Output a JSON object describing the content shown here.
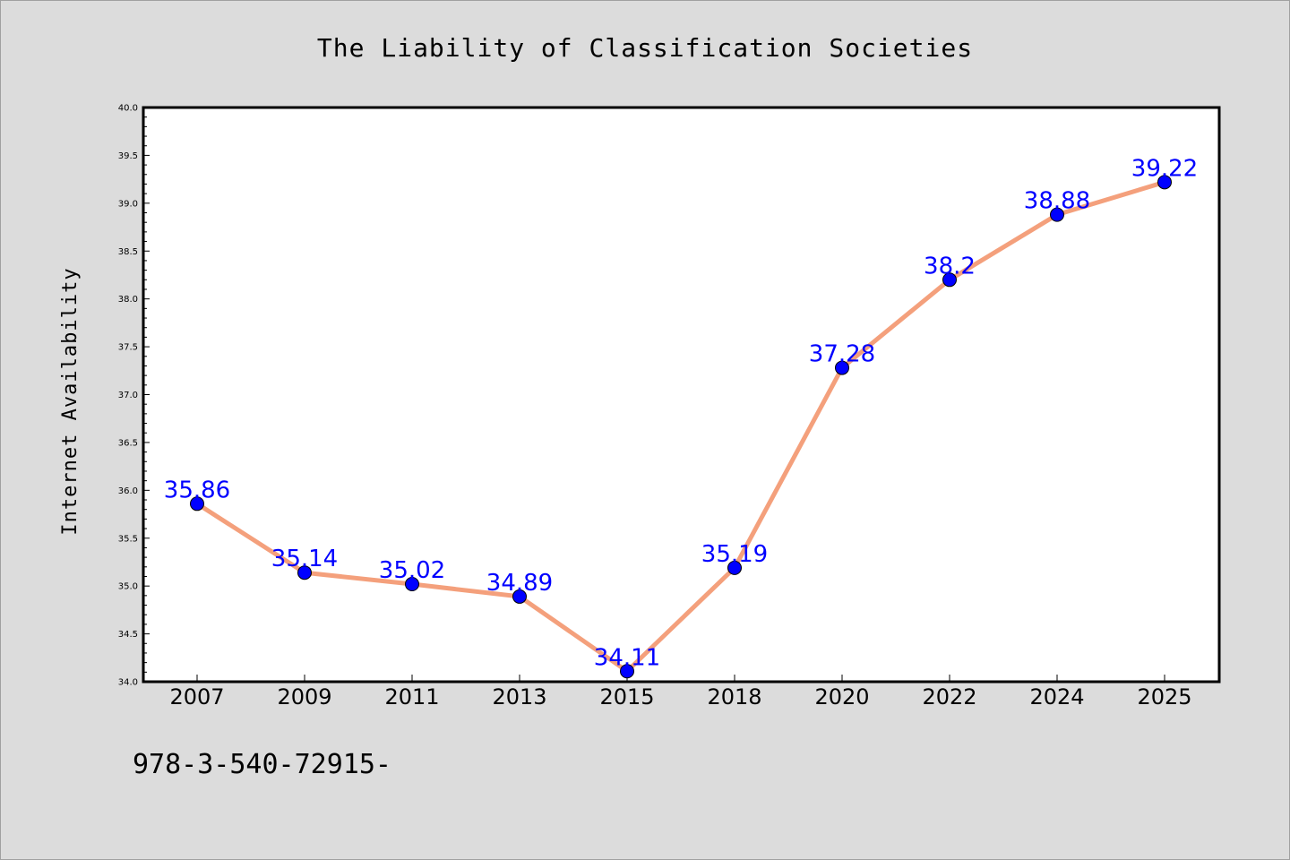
{
  "chart_data": {
    "type": "line",
    "title": "The Liability of Classification Societies",
    "ylabel": "Internet Availability",
    "xlabel": "",
    "categories": [
      "2007",
      "2009",
      "2011",
      "2013",
      "2015",
      "2018",
      "2020",
      "2022",
      "2024",
      "2025"
    ],
    "series": [
      {
        "values": [
          35.86,
          35.14,
          35.02,
          34.89,
          34.11,
          35.19,
          37.28,
          38.2,
          38.88,
          39.22
        ],
        "data_labels": [
          "35.86",
          "35.14",
          "35.02",
          "34.89",
          "34.11",
          "35.19",
          "37.28",
          "38.2",
          "38.88",
          "39.22"
        ]
      }
    ],
    "ylim": [
      34.0,
      40.0
    ],
    "yticks": [
      "34.0",
      "34.5",
      "35.0",
      "35.5",
      "36.0",
      "36.5",
      "37.0",
      "37.5",
      "38.0",
      "38.5",
      "39.0",
      "39.5",
      "40.0"
    ],
    "grid": false,
    "colors": {
      "line": "#f4a07c",
      "marker": "#0000ff",
      "data_label": "#0000ff",
      "plot_background": "#ffffff",
      "figure_background": "#dcdcdc"
    }
  },
  "footer": {
    "text": "978-3-540-72915-"
  }
}
